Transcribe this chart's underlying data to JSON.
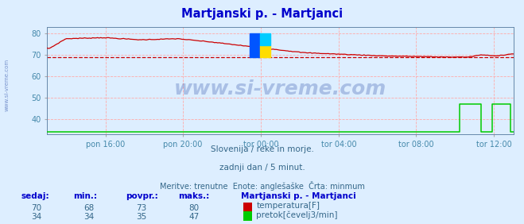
{
  "title": "Martjanski p. - Martjanci",
  "title_color": "#0000cc",
  "bg_color": "#ddeeff",
  "plot_bg_color": "#ddeeff",
  "grid_color": "#ffaaaa",
  "xlabel_color": "#4488aa",
  "ylabel_color": "#4488aa",
  "watermark": "www.si-vreme.com",
  "subtitle1": "Slovenija / reke in morje.",
  "subtitle2": "zadnji dan / 5 minut.",
  "subtitle3": "Meritve: trenutne  Enote: anglešaške  Črta: minmum",
  "legend_title": "Martjanski p. - Martjanci",
  "legend_items": [
    "temperatura[F]",
    "pretok[čevelj3/min]"
  ],
  "legend_colors": [
    "#cc0000",
    "#00cc00"
  ],
  "stats_headers": [
    "sedaj:",
    "min.:",
    "povpr.:",
    "maks.:"
  ],
  "stats_temp": [
    70,
    68,
    73,
    80
  ],
  "stats_flow": [
    34,
    34,
    35,
    47
  ],
  "x_tick_labels": [
    "pon 16:00",
    "pon 20:00",
    "tor 00:00",
    "tor 04:00",
    "tor 08:00",
    "tor 12:00"
  ],
  "x_tick_positions": [
    0.125,
    0.291,
    0.458,
    0.625,
    0.791,
    0.958
  ],
  "ylim": [
    33,
    83
  ],
  "yticks": [
    40,
    50,
    60,
    70,
    80
  ],
  "avg_line_y": 69,
  "avg_line_color": "#cc0000",
  "text_color": "#336688",
  "stats_header_color": "#0000cc",
  "stats_val_color": "#336688",
  "legend_title_color": "#0000cc"
}
